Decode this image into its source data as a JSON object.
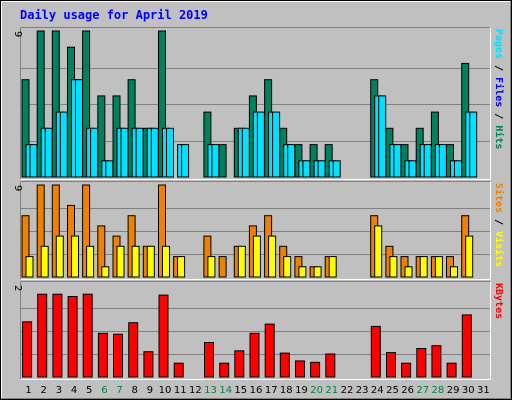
{
  "chart_data": {
    "type": "bar",
    "title": "Daily usage for April 2019",
    "colors": {
      "background": "#c0c0c0",
      "hits": "#00805c",
      "files": "#00e0ff",
      "pages": "#00e0ff",
      "visits": "#f08000",
      "sites": "#ffff00",
      "kbytes": "#ff0000",
      "weekday_label": "#000000",
      "weekend_label": "#008040",
      "title": "#0000ff"
    },
    "days": [
      "1",
      "2",
      "3",
      "4",
      "5",
      "6",
      "7",
      "8",
      "9",
      "10",
      "11",
      "12",
      "13",
      "14",
      "15",
      "16",
      "17",
      "18",
      "19",
      "20",
      "21",
      "22",
      "23",
      "24",
      "25",
      "26",
      "27",
      "28",
      "29",
      "30",
      "31"
    ],
    "weekend_days": [
      "6",
      "7",
      "13",
      "14",
      "20",
      "21",
      "27",
      "28"
    ],
    "panels": [
      {
        "id": "hits-files-pages",
        "ymax_label": "9",
        "ymax": 9,
        "legend": [
          {
            "text": "Pages",
            "color": "#00e0ff"
          },
          {
            "text": " / ",
            "color": "#000000"
          },
          {
            "text": "Files",
            "color": "#0000ff"
          },
          {
            "text": " / ",
            "color": "#000000"
          },
          {
            "text": "Hits",
            "color": "#00805c"
          }
        ],
        "series": [
          {
            "name": "Hits",
            "color": "#00805c",
            "values": [
              6,
              9,
              9,
              8,
              9,
              5,
              5,
              6,
              3,
              9,
              0,
              0,
              4,
              2,
              3,
              5,
              6,
              3,
              2,
              2,
              2,
              0,
              0,
              6,
              3,
              2,
              3,
              4,
              2,
              7,
              0
            ]
          },
          {
            "name": "Files",
            "color": "#00e0ff",
            "values": [
              2,
              3,
              4,
              6,
              3,
              1,
              3,
              3,
              3,
              3,
              2,
              0,
              2,
              0,
              3,
              4,
              4,
              2,
              1,
              1,
              1,
              0,
              0,
              5,
              2,
              1,
              2,
              2,
              1,
              4,
              0
            ]
          },
          {
            "name": "Pages",
            "color": "#00e0ff",
            "values": [
              2,
              3,
              4,
              6,
              3,
              1,
              3,
              3,
              3,
              3,
              2,
              0,
              2,
              0,
              3,
              4,
              4,
              2,
              1,
              1,
              1,
              0,
              0,
              5,
              2,
              1,
              2,
              2,
              1,
              4,
              0
            ]
          }
        ]
      },
      {
        "id": "visits-sites",
        "ymax_label": "9",
        "ymax": 9,
        "legend": [
          {
            "text": "Sites",
            "color": "#f08000"
          },
          {
            "text": " / ",
            "color": "#000000"
          },
          {
            "text": "Visits",
            "color": "#ffff00"
          }
        ],
        "series": [
          {
            "name": "Visits",
            "color": "#f08000",
            "values": [
              6,
              9,
              9,
              7,
              9,
              5,
              4,
              6,
              3,
              9,
              2,
              0,
              4,
              2,
              3,
              5,
              6,
              3,
              2,
              1,
              2,
              0,
              0,
              6,
              3,
              2,
              2,
              2,
              2,
              6,
              0
            ]
          },
          {
            "name": "Sites",
            "color": "#ffff00",
            "values": [
              2,
              3,
              4,
              4,
              3,
              1,
              3,
              3,
              3,
              3,
              2,
              0,
              2,
              0,
              3,
              4,
              4,
              2,
              1,
              1,
              2,
              0,
              0,
              5,
              2,
              1,
              2,
              2,
              1,
              4,
              0
            ]
          }
        ]
      },
      {
        "id": "kbytes",
        "ymax_label": "2",
        "ymax": 2,
        "legend": [
          {
            "text": "KBytes",
            "color": "#ff0000"
          }
        ],
        "series": [
          {
            "name": "KBytes",
            "color": "#ff0000",
            "values": [
              1.2,
              1.8,
              1.8,
              1.75,
              1.8,
              0.95,
              0.93,
              1.18,
              0.55,
              1.78,
              0.3,
              0,
              0.75,
              0.3,
              0.57,
              0.95,
              1.15,
              0.52,
              0.35,
              0.32,
              0.5,
              0,
              0,
              1.1,
              0.53,
              0.3,
              0.62,
              0.68,
              0.3,
              1.35,
              0
            ]
          }
        ]
      }
    ]
  }
}
